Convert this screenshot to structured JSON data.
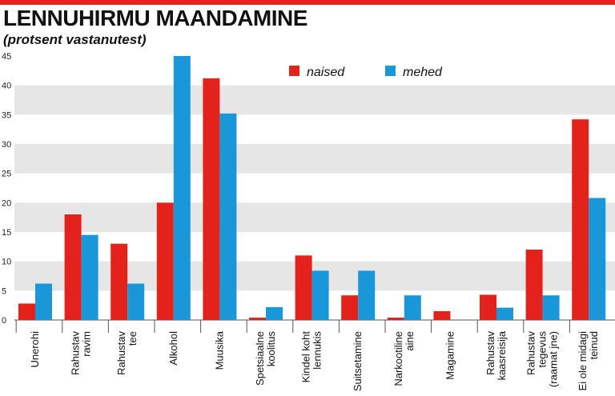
{
  "title": "LENNUHIRMU MAANDAMINE",
  "subtitle": "(protsent vastanutest)",
  "colors": {
    "naised": "#e3231b",
    "mehed": "#1a97d8",
    "band": "#e6e6e6",
    "topbar": "#e3231b"
  },
  "chart_data": {
    "type": "bar",
    "title": "LENNUHIRMU MAANDAMINE",
    "subtitle": "(protsent vastanutest)",
    "ylim": [
      0,
      45
    ],
    "yticks": [
      0,
      5,
      10,
      15,
      20,
      25,
      30,
      35,
      40,
      45
    ],
    "legend_position": "top-center",
    "categories": [
      [
        "Unerohi"
      ],
      [
        "Rahustav",
        "ravim"
      ],
      [
        "Rahustav",
        "tee"
      ],
      [
        "Alkohol"
      ],
      [
        "Muusika"
      ],
      [
        "Spetsiaalne",
        "koolitus"
      ],
      [
        "Kindel koht",
        "lennukis"
      ],
      [
        "Suitsetamine"
      ],
      [
        "Narkootiline",
        "aine"
      ],
      [
        "Magamine"
      ],
      [
        "Rahustav",
        "kaasreisija"
      ],
      [
        "Rahustav",
        "tegevus",
        "(raamat jne)"
      ],
      [
        "Ei ole midagi",
        "teinud"
      ]
    ],
    "series": [
      {
        "name": "naised",
        "values": [
          2.8,
          18,
          13,
          20,
          41.2,
          0.4,
          11,
          4.2,
          0.4,
          1.5,
          4.3,
          12,
          34.2
        ]
      },
      {
        "name": "mehed",
        "values": [
          6.2,
          14.5,
          6.2,
          45,
          35.2,
          2.2,
          8.4,
          8.4,
          4.2,
          0,
          2.1,
          4.2,
          20.8
        ]
      }
    ]
  }
}
